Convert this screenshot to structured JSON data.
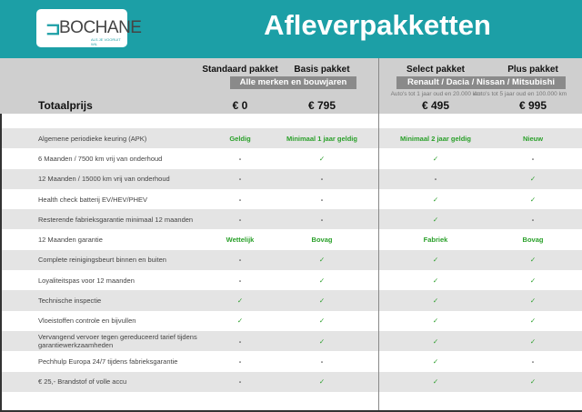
{
  "header": {
    "logo_name": "BOCHANE",
    "logo_tagline": "ALS JE VOORUIT WIL",
    "title": "Afleverpakketten",
    "brand_color": "#1c9fa6"
  },
  "packages": [
    {
      "name": "Standaard pakket",
      "price": "€ 0"
    },
    {
      "name": "Basis pakket",
      "price": "€ 795"
    },
    {
      "name": "Select pakket",
      "price": "€ 495",
      "note": "Auto's tot 1 jaar oud en 20.000 km"
    },
    {
      "name": "Plus pakket",
      "price": "€ 995",
      "note": "Auto's tot 5 jaar oud en 100.000 km"
    }
  ],
  "groups": {
    "left": "Alle merken en bouwjaren",
    "right": "Renault / Dacia / Nissan / Mitsubishi"
  },
  "total_label": "Totaalprijs",
  "rows": [
    {
      "label": "Algemene periodieke keuring (APK)",
      "values": [
        "Geldig",
        "Minimaal 1 jaar geldig",
        "Minimaal 2 jaar geldig",
        "Nieuw"
      ]
    },
    {
      "label": "6 Maanden / 7500 km vrij van onderhoud",
      "values": [
        "-",
        "✓",
        "✓",
        "-"
      ]
    },
    {
      "label": "12 Maanden / 15000 km vrij van onderhoud",
      "values": [
        "-",
        "-",
        "-",
        "✓"
      ]
    },
    {
      "label": "Health check batterij EV/HEV/PHEV",
      "values": [
        "-",
        "-",
        "✓",
        "✓"
      ]
    },
    {
      "label": "Resterende fabrieksgarantie minimaal 12 maanden",
      "values": [
        "-",
        "-",
        "✓",
        "-"
      ]
    },
    {
      "label": "12 Maanden  garantie",
      "values": [
        "Wettelijk",
        "Bovag",
        "Fabriek",
        "Bovag"
      ]
    },
    {
      "label": "Complete reinigingsbeurt binnen en buiten",
      "values": [
        "-",
        "✓",
        "✓",
        "✓"
      ]
    },
    {
      "label": "Loyaliteitspas voor 12 maanden",
      "values": [
        "-",
        "✓",
        "✓",
        "✓"
      ]
    },
    {
      "label": "Technische inspectie",
      "values": [
        "✓",
        "✓",
        "✓",
        "✓"
      ]
    },
    {
      "label": "Vloeistoffen controle en bijvullen",
      "values": [
        "✓",
        "✓",
        "✓",
        "✓"
      ]
    },
    {
      "label": "Vervangend vervoer tegen gereduceerd tarief tijdens garantiewerkzaamheden",
      "values": [
        "-",
        "✓",
        "✓",
        "✓"
      ]
    },
    {
      "label": "Pechhulp Europa 24/7 tijdens fabrieksgarantie",
      "values": [
        "-",
        "-",
        "✓",
        "-"
      ]
    },
    {
      "label": "€ 25,- Brandstof of  volle accu",
      "values": [
        "-",
        "✓",
        "✓",
        "✓"
      ]
    }
  ]
}
